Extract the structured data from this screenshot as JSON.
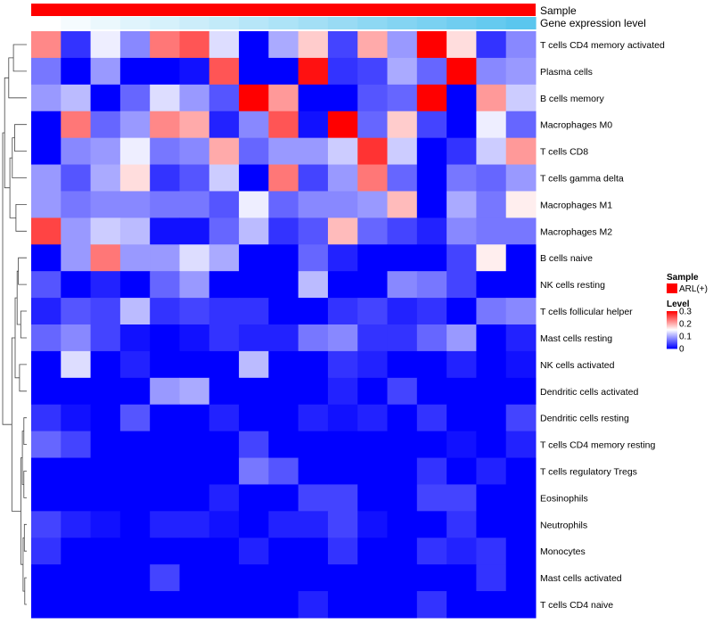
{
  "chart_data": {
    "type": "heatmap",
    "annotations": [
      {
        "name": "Sample",
        "color": "#ff0000"
      },
      {
        "name": "Gene expression level",
        "gradient": [
          "#ffffff",
          "#5bc6ee"
        ]
      }
    ],
    "columns": 17,
    "rows": [
      "T cells CD4 memory activated",
      "Plasma cells",
      "B cells memory",
      "Macrophages M0",
      "T cells CD8",
      "T cells gamma delta",
      "Macrophages M1",
      "Macrophages M2",
      "B cells naive",
      "NK cells resting",
      "T cells follicular helper",
      "Mast cells resting",
      "NK cells activated",
      "Dendritic cells activated",
      "Dendritic cells resting",
      "T cells CD4 memory resting",
      "T cells regulatory  Tregs",
      "Eosinophils",
      "Neutrophils",
      "Monocytes",
      "Mast cells activated",
      "T cells CD4 naive"
    ],
    "values": [
      [
        0.22,
        0.03,
        0.14,
        0.08,
        0.23,
        0.25,
        0.13,
        0.0,
        0.1,
        0.18,
        0.04,
        0.2,
        0.09,
        0.3,
        0.17,
        0.03,
        0.08
      ],
      [
        0.07,
        0.0,
        0.09,
        0.0,
        0.0,
        0.01,
        0.25,
        0.0,
        0.0,
        0.29,
        0.03,
        0.04,
        0.1,
        0.06,
        0.3,
        0.08,
        0.09
      ],
      [
        0.09,
        0.11,
        0.0,
        0.06,
        0.13,
        0.09,
        0.05,
        0.3,
        0.21,
        0.0,
        0.0,
        0.05,
        0.06,
        0.3,
        0.0,
        0.21,
        0.12
      ],
      [
        0.0,
        0.23,
        0.06,
        0.09,
        0.22,
        0.2,
        0.02,
        0.08,
        0.25,
        0.01,
        0.3,
        0.06,
        0.18,
        0.04,
        0.0,
        0.14,
        0.06
      ],
      [
        0.0,
        0.08,
        0.09,
        0.14,
        0.07,
        0.08,
        0.2,
        0.06,
        0.09,
        0.09,
        0.12,
        0.27,
        0.12,
        0.0,
        0.03,
        0.12,
        0.21
      ],
      [
        0.09,
        0.05,
        0.1,
        0.17,
        0.03,
        0.05,
        0.12,
        0.0,
        0.23,
        0.04,
        0.09,
        0.23,
        0.06,
        0.0,
        0.07,
        0.06,
        0.09
      ],
      [
        0.09,
        0.07,
        0.08,
        0.08,
        0.07,
        0.07,
        0.05,
        0.14,
        0.06,
        0.08,
        0.08,
        0.09,
        0.19,
        0.0,
        0.1,
        0.07,
        0.16
      ],
      [
        0.26,
        0.09,
        0.12,
        0.11,
        0.01,
        0.01,
        0.06,
        0.11,
        0.03,
        0.05,
        0.19,
        0.06,
        0.04,
        0.02,
        0.08,
        0.07,
        0.07
      ],
      [
        0.0,
        0.09,
        0.23,
        0.09,
        0.09,
        0.13,
        0.1,
        0.0,
        0.0,
        0.06,
        0.02,
        0.0,
        0.0,
        0.0,
        0.04,
        0.16,
        0.0
      ],
      [
        0.05,
        0.0,
        0.02,
        0.0,
        0.06,
        0.09,
        0.0,
        0.0,
        0.0,
        0.11,
        0.0,
        0.0,
        0.08,
        0.07,
        0.04,
        0.0,
        0.0
      ],
      [
        0.02,
        0.05,
        0.04,
        0.11,
        0.03,
        0.04,
        0.03,
        0.03,
        0.0,
        0.0,
        0.03,
        0.04,
        0.02,
        0.03,
        0.0,
        0.07,
        0.08
      ],
      [
        0.06,
        0.08,
        0.04,
        0.01,
        0.0,
        0.01,
        0.03,
        0.02,
        0.02,
        0.07,
        0.08,
        0.03,
        0.03,
        0.06,
        0.09,
        0.0,
        0.02
      ],
      [
        0.0,
        0.13,
        0.0,
        0.02,
        0.0,
        0.0,
        0.0,
        0.11,
        0.0,
        0.0,
        0.03,
        0.02,
        0.0,
        0.0,
        0.02,
        0.0,
        0.01
      ],
      [
        0.0,
        0.0,
        0.0,
        0.0,
        0.09,
        0.1,
        0.0,
        0.0,
        0.0,
        0.0,
        0.02,
        0.0,
        0.04,
        0.0,
        0.0,
        0.0,
        0.0
      ],
      [
        0.03,
        0.01,
        0.0,
        0.05,
        0.0,
        0.0,
        0.02,
        0.0,
        0.0,
        0.02,
        0.01,
        0.02,
        0.0,
        0.03,
        0.0,
        0.0,
        0.04
      ],
      [
        0.06,
        0.04,
        0.0,
        0.0,
        0.0,
        0.0,
        0.0,
        0.04,
        0.0,
        0.0,
        0.0,
        0.0,
        0.0,
        0.0,
        0.01,
        0.0,
        0.02
      ],
      [
        0.0,
        0.0,
        0.0,
        0.0,
        0.0,
        0.0,
        0.0,
        0.07,
        0.05,
        0.0,
        0.0,
        0.0,
        0.0,
        0.03,
        0.0,
        0.02,
        0.0
      ],
      [
        0.0,
        0.0,
        0.0,
        0.0,
        0.0,
        0.0,
        0.02,
        0.0,
        0.0,
        0.04,
        0.04,
        0.0,
        0.0,
        0.04,
        0.04,
        0.0,
        0.0
      ],
      [
        0.04,
        0.02,
        0.01,
        0.0,
        0.02,
        0.02,
        0.01,
        0.0,
        0.02,
        0.02,
        0.04,
        0.01,
        0.0,
        0.0,
        0.03,
        0.0,
        0.0
      ],
      [
        0.03,
        0.0,
        0.0,
        0.0,
        0.0,
        0.0,
        0.0,
        0.02,
        0.0,
        0.0,
        0.03,
        0.0,
        0.0,
        0.03,
        0.02,
        0.03,
        0.0
      ],
      [
        0.0,
        0.0,
        0.0,
        0.0,
        0.04,
        0.0,
        0.0,
        0.0,
        0.0,
        0.0,
        0.0,
        0.0,
        0.0,
        0.0,
        0.0,
        0.03,
        0.0
      ],
      [
        0.0,
        0.0,
        0.0,
        0.0,
        0.0,
        0.0,
        0.0,
        0.0,
        0.0,
        0.02,
        0.0,
        0.0,
        0.0,
        0.03,
        0.0,
        0.0,
        0.0
      ]
    ],
    "color_scale": {
      "min": 0,
      "max": 0.3,
      "colors": [
        "#0000ff",
        "#ffffff",
        "#ff0000"
      ]
    },
    "legend": {
      "sample_title": "Sample",
      "sample_items": [
        {
          "label": "ARL(+)",
          "color": "#ff0000"
        }
      ],
      "level_title": "Level",
      "level_ticks": [
        {
          "value": 0.3,
          "label": "0.3"
        },
        {
          "value": 0.2,
          "label": "0.2"
        },
        {
          "value": 0.1,
          "label": "0.1"
        },
        {
          "value": 0,
          "label": "0"
        }
      ]
    },
    "dendrogram": "rows",
    "xlabel": "",
    "ylabel": ""
  }
}
